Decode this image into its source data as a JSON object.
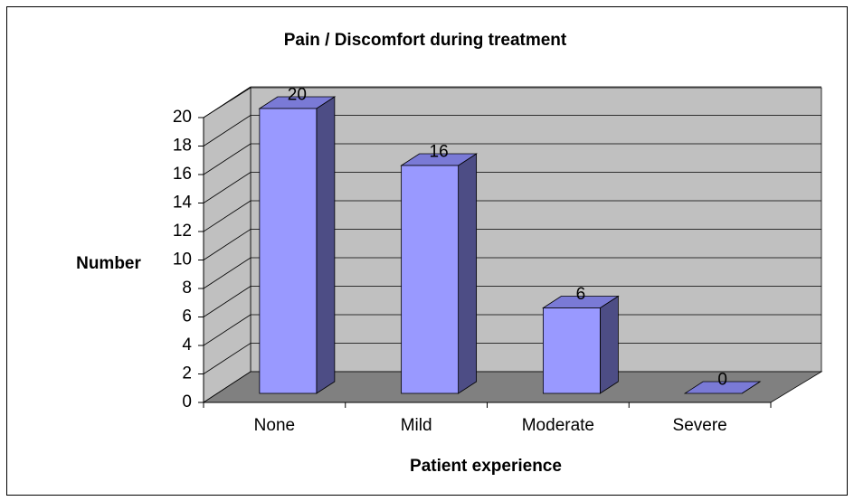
{
  "chart_data": {
    "type": "bar3d",
    "title": "Pain / Discomfort during treatment",
    "categories": [
      "None",
      "Mild",
      "Moderate",
      "Severe"
    ],
    "values": [
      20,
      16,
      6,
      0
    ],
    "color": "#9999ff",
    "ylim": [
      0,
      20
    ],
    "yticks": [
      0,
      2,
      4,
      6,
      8,
      10,
      12,
      14,
      16,
      18,
      20
    ],
    "xlabel": "Patient experience",
    "ylabel": "Number",
    "grid": true
  }
}
